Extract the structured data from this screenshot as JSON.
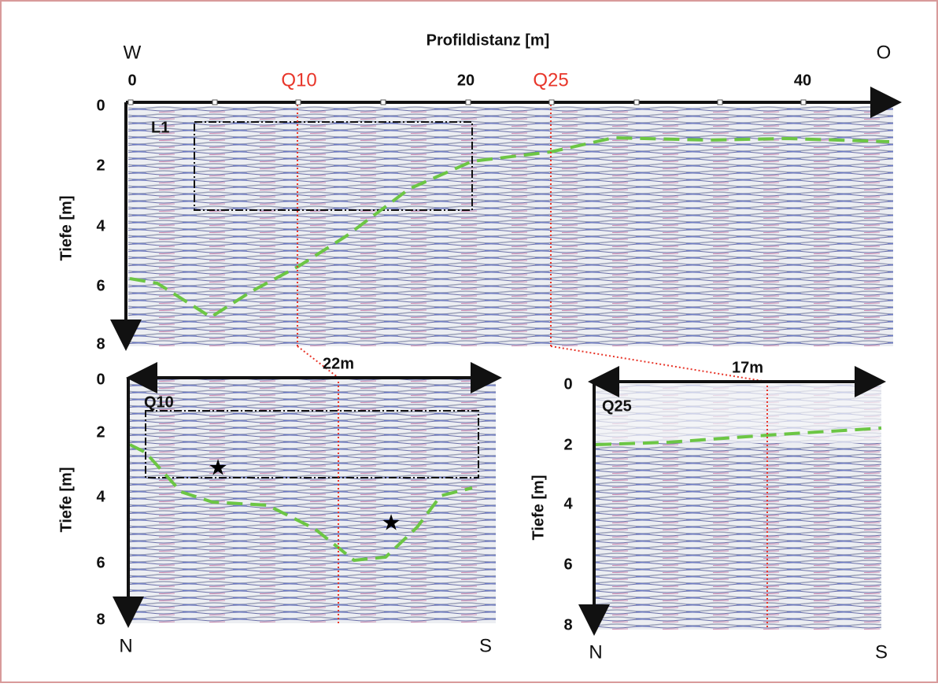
{
  "header": {
    "title": "Profildistanz [m]",
    "west": "W",
    "east": "O"
  },
  "top": {
    "xticks": [
      "0",
      "20",
      "40"
    ],
    "markers": [
      "Q10",
      "Q25"
    ],
    "label": "L1",
    "ylabel": "Tiefe [m]",
    "yticks": [
      "0",
      "2",
      "4",
      "6",
      "8"
    ]
  },
  "panels": [
    {
      "label": "Q10",
      "width": "22m",
      "ylabel": "Tiefe [m]",
      "yticks": [
        "0",
        "2",
        "4",
        "6",
        "8"
      ],
      "left": "N",
      "right": "S"
    },
    {
      "label": "Q25",
      "width": "17m",
      "ylabel": "Tiefe [m]",
      "yticks": [
        "0",
        "2",
        "4",
        "6",
        "8"
      ],
      "left": "N",
      "right": "S"
    }
  ]
}
